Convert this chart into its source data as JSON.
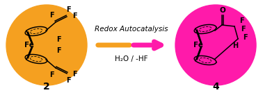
{
  "bg_color": "#ffffff",
  "circle1_color": "#f5a020",
  "circle2_color": "#ff1aaa",
  "fig_width": 3.78,
  "fig_height": 1.37,
  "dpi": 100,
  "label1": "2",
  "label2": "4",
  "arrow_color_left": "#f5a020",
  "arrow_color_right": "#ff1aaa",
  "arrow_text_top": "Redox Autocatalysis",
  "arrow_text_bottom": "H₂O / -HF"
}
